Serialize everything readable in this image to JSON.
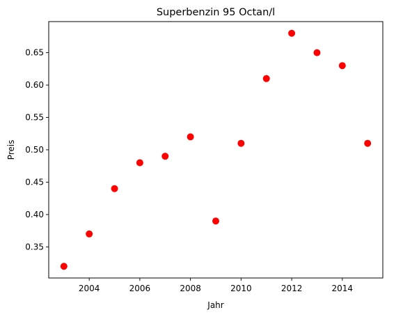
{
  "chart_data": {
    "type": "scatter",
    "title": "Superbenzin 95 Octan/l",
    "xlabel": "Jahr",
    "ylabel": "Preis",
    "x": [
      2003,
      2004,
      2005,
      2006,
      2007,
      2008,
      2009,
      2010,
      2011,
      2012,
      2013,
      2014,
      2015
    ],
    "y": [
      0.32,
      0.37,
      0.44,
      0.48,
      0.49,
      0.52,
      0.39,
      0.51,
      0.61,
      0.68,
      0.65,
      0.63,
      0.51
    ],
    "xlim": [
      2002.4,
      2015.6
    ],
    "ylim": [
      0.302,
      0.698
    ],
    "xticks": [
      2004,
      2006,
      2008,
      2010,
      2012,
      2014
    ],
    "xtick_labels": [
      "2004",
      "2006",
      "2008",
      "2010",
      "2012",
      "2014"
    ],
    "yticks": [
      0.35,
      0.4,
      0.45,
      0.5,
      0.55,
      0.6,
      0.65
    ],
    "ytick_labels": [
      "0.35",
      "0.40",
      "0.45",
      "0.50",
      "0.55",
      "0.60",
      "0.65"
    ],
    "marker_color": "#ff0000",
    "grid": false,
    "legend": false
  }
}
